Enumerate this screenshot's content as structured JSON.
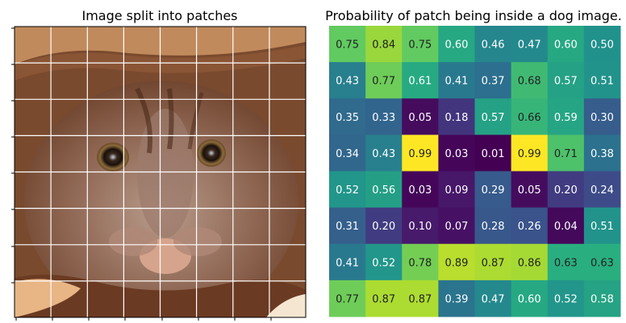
{
  "chart_data": [
    {
      "type": "image",
      "title": "Image split into patches",
      "description_grid": {
        "rows": 8,
        "cols": 8
      },
      "xlabel": "",
      "ylabel": ""
    },
    {
      "type": "heatmap",
      "title": "Probability of patch being inside a dog image.",
      "colormap": "viridis",
      "vmin": 0.01,
      "vmax": 0.99,
      "rows": 8,
      "cols": 8,
      "values": [
        [
          0.75,
          0.84,
          0.75,
          0.6,
          0.46,
          0.47,
          0.6,
          0.5
        ],
        [
          0.43,
          0.77,
          0.61,
          0.41,
          0.37,
          0.68,
          0.57,
          0.51
        ],
        [
          0.35,
          0.33,
          0.05,
          0.18,
          0.57,
          0.66,
          0.59,
          0.3
        ],
        [
          0.34,
          0.43,
          0.99,
          0.03,
          0.01,
          0.99,
          0.71,
          0.38
        ],
        [
          0.52,
          0.56,
          0.03,
          0.09,
          0.29,
          0.05,
          0.2,
          0.24
        ],
        [
          0.31,
          0.2,
          0.1,
          0.07,
          0.28,
          0.26,
          0.04,
          0.51
        ],
        [
          0.41,
          0.52,
          0.78,
          0.89,
          0.87,
          0.86,
          0.63,
          0.63
        ],
        [
          0.77,
          0.87,
          0.87,
          0.39,
          0.47,
          0.6,
          0.52,
          0.58
        ]
      ]
    }
  ]
}
